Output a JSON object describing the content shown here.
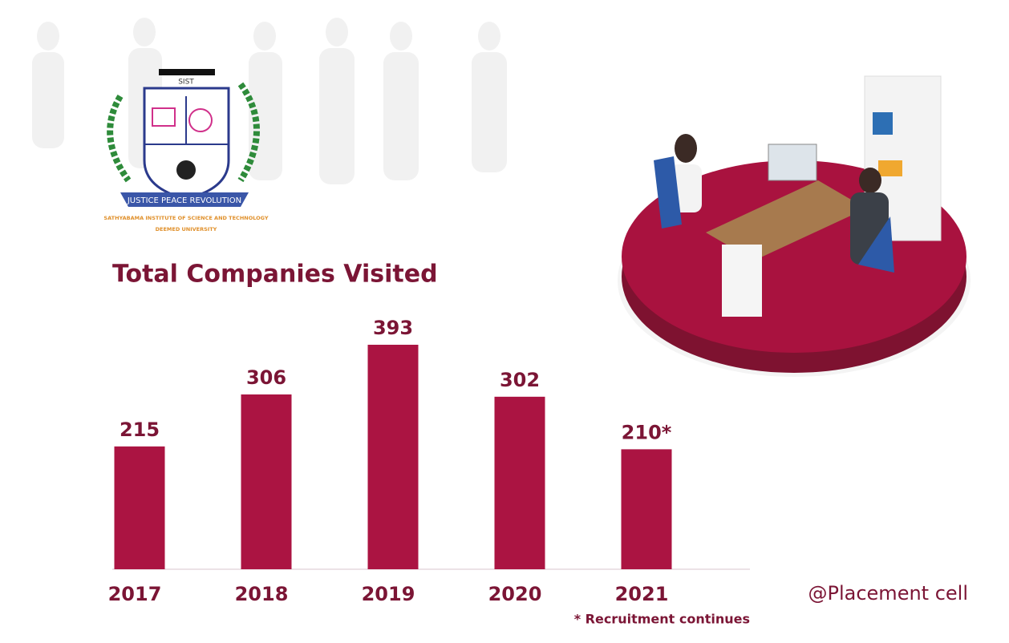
{
  "logo": {
    "acronym": "SIST",
    "motto": "JUSTICE PEACE REVOLUTION",
    "name": "SATHYABAMA INSTITUTE OF SCIENCE AND TECHNOLOGY",
    "status": "DEEMED UNIVERSITY"
  },
  "chart_data": {
    "type": "bar",
    "title": "Total Companies Visited",
    "categories": [
      "2017",
      "2018",
      "2019",
      "2020",
      "2021"
    ],
    "values": [
      215,
      306,
      393,
      302,
      210
    ],
    "value_labels": [
      "215",
      "306",
      "393",
      "302",
      "210*"
    ],
    "color": "#ab1442",
    "footnote": "* Recruitment continues"
  },
  "credit": "@Placement cell"
}
